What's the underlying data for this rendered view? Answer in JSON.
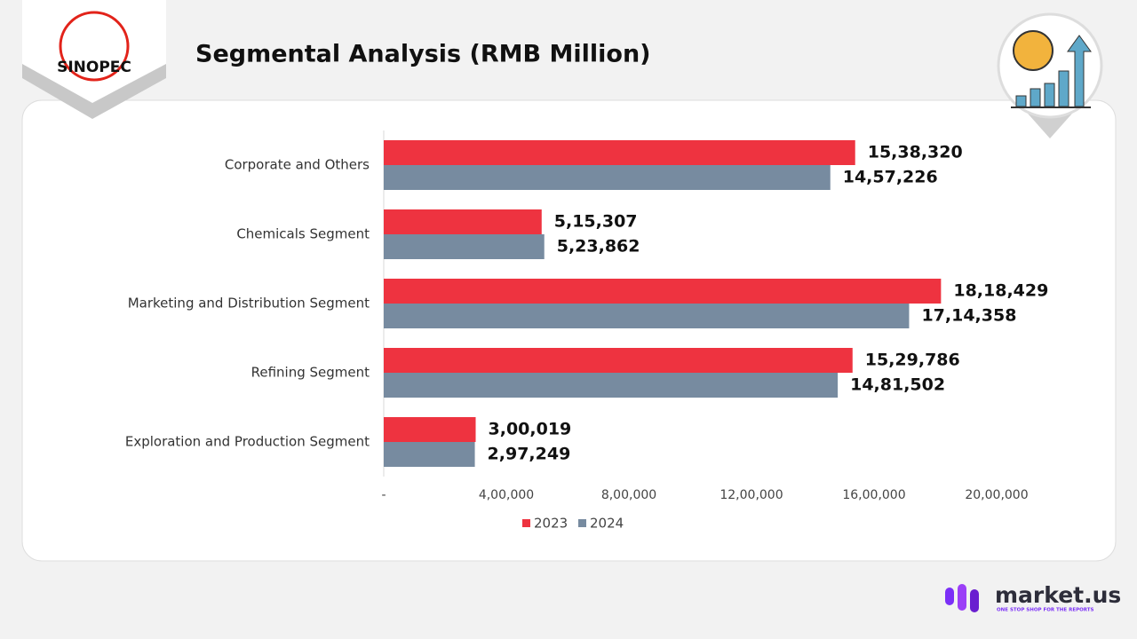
{
  "header": {
    "logo_text": "SINOPEC"
  },
  "chart_data": {
    "type": "hbar",
    "title": "Segmental Analysis (RMB Million)",
    "categories": [
      "Corporate and Others",
      "Chemicals Segment",
      "Marketing and Distribution Segment",
      "Refining Segment",
      "Exploration and Production Segment"
    ],
    "series": [
      {
        "name": "2023",
        "color": "#ee3340",
        "values": [
          1538320,
          515307,
          1818429,
          1529786,
          300019
        ],
        "value_labels": [
          "15,38,320",
          "5,15,307",
          "18,18,429",
          "15,29,786",
          "3,00,019"
        ]
      },
      {
        "name": "2024",
        "color": "#778ba0",
        "values": [
          1457226,
          523862,
          1714358,
          1481502,
          297249
        ],
        "value_labels": [
          "14,57,226",
          "5,23,862",
          "17,14,358",
          "14,81,502",
          "2,97,249"
        ]
      }
    ],
    "xlim": [
      0,
      2000000
    ],
    "xticks": [
      {
        "value": 0,
        "label": "-"
      },
      {
        "value": 400000,
        "label": "4,00,000"
      },
      {
        "value": 800000,
        "label": "8,00,000"
      },
      {
        "value": 1200000,
        "label": "12,00,000"
      },
      {
        "value": 1600000,
        "label": "16,00,000"
      },
      {
        "value": 2000000,
        "label": "20,00,000"
      }
    ],
    "legend": "bottom"
  },
  "footer": {
    "brand": "market.us",
    "tagline": "ONE STOP SHOP FOR THE REPORTS"
  }
}
